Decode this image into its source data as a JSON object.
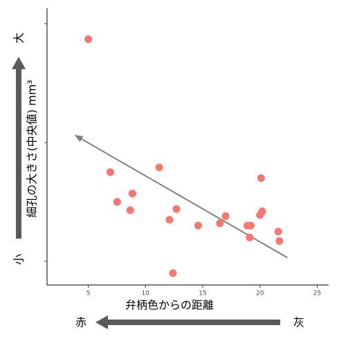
{
  "chart_data": {
    "type": "scatter",
    "x_label": "弁柄色からの距離",
    "y_label": "細孔の大きさ(中央値)  mm³",
    "y_high_label": "大",
    "y_low_label": "小",
    "x_low_label": "赤",
    "x_high_label": "灰",
    "x_low_color": "#b22222",
    "color": "#f8766d",
    "x": [
      5.0,
      6.93,
      7.53,
      8.67,
      8.86,
      11.2,
      12.1,
      12.7,
      12.4,
      14.6,
      16.5,
      17.0,
      18.9,
      19.2,
      19.1,
      20.1,
      20.0,
      20.2,
      21.6,
      21.7
    ],
    "y": [
      2.87,
      1.75,
      1.5,
      1.43,
      1.57,
      1.79,
      1.35,
      1.44,
      0.9,
      1.3,
      1.32,
      1.38,
      1.3,
      1.3,
      1.2,
      1.7,
      1.39,
      1.42,
      1.25,
      1.17
    ],
    "trend": {
      "x": [
        22.4,
        3.86
      ],
      "y": [
        1.03,
        2.06
      ],
      "color": "#808080"
    },
    "xlim": [
      1.4,
      26
    ],
    "ylim": [
      0.8,
      3.13
    ],
    "xticks": [
      5,
      10,
      15,
      20,
      25
    ],
    "yticks": [
      1,
      2,
      3
    ]
  }
}
